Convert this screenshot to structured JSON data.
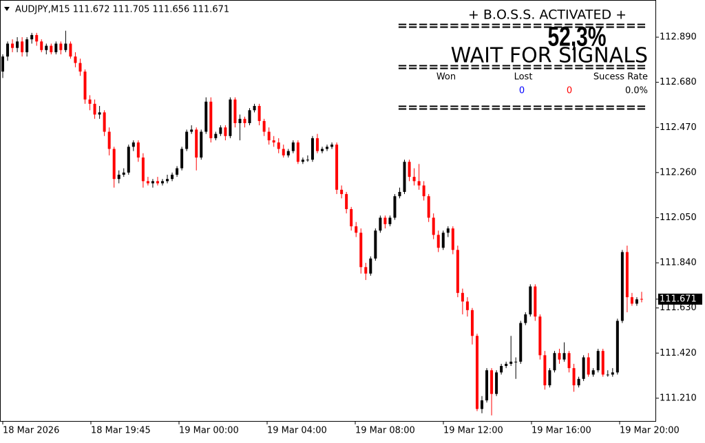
{
  "chart_data": {
    "type": "candlestick",
    "header": "AUDJPY,M15  111.672 111.705 111.656 111.671",
    "up_color": "#000000",
    "down_color": "#ff0000",
    "ylim": [
      111.104,
      113.063
    ],
    "yticks": [
      {
        "value": 112.89,
        "label": "112.890"
      },
      {
        "value": 112.68,
        "label": "112.680"
      },
      {
        "value": 112.47,
        "label": "112.470"
      },
      {
        "value": 112.26,
        "label": "112.260"
      },
      {
        "value": 112.05,
        "label": "112.050"
      },
      {
        "value": 111.84,
        "label": "111.840"
      },
      {
        "value": 111.63,
        "label": "111.630"
      },
      {
        "value": 111.42,
        "label": "111.420"
      },
      {
        "value": 111.21,
        "label": "111.210"
      }
    ],
    "last_price": {
      "value": 111.671,
      "label": "111.671"
    },
    "time_labels": [
      "18 Mar 2026",
      "18 Mar 19:45",
      "19 Mar 00:00",
      "19 Mar 04:00",
      "19 Mar 08:00",
      "19 Mar 12:00",
      "19 Mar 16:00",
      "19 Mar 20:00"
    ],
    "candles": [
      [
        112.73,
        112.81,
        112.7,
        112.8
      ],
      [
        112.8,
        112.87,
        112.78,
        112.86
      ],
      [
        112.86,
        112.88,
        112.82,
        112.84
      ],
      [
        112.84,
        112.89,
        112.82,
        112.87
      ],
      [
        112.87,
        112.89,
        112.8,
        112.82
      ],
      [
        112.82,
        112.89,
        112.8,
        112.88
      ],
      [
        112.88,
        112.91,
        112.86,
        112.9
      ],
      [
        112.9,
        112.91,
        112.85,
        112.87
      ],
      [
        112.87,
        112.88,
        112.82,
        112.83
      ],
      [
        112.83,
        112.86,
        112.81,
        112.85
      ],
      [
        112.85,
        112.86,
        112.81,
        112.82
      ],
      [
        112.82,
        112.87,
        112.81,
        112.86
      ],
      [
        112.86,
        112.87,
        112.81,
        112.83
      ],
      [
        112.83,
        112.92,
        112.82,
        112.86
      ],
      [
        112.86,
        112.87,
        112.79,
        112.8
      ],
      [
        112.8,
        112.82,
        112.75,
        112.77
      ],
      [
        112.77,
        112.79,
        112.71,
        112.73
      ],
      [
        112.73,
        112.74,
        112.58,
        112.6
      ],
      [
        112.6,
        112.62,
        112.55,
        112.58
      ],
      [
        112.58,
        112.6,
        112.51,
        112.53
      ],
      [
        112.53,
        112.57,
        112.51,
        112.54
      ],
      [
        112.54,
        112.55,
        112.43,
        112.45
      ],
      [
        112.45,
        112.47,
        112.34,
        112.37
      ],
      [
        112.37,
        112.38,
        112.19,
        112.23
      ],
      [
        112.23,
        112.27,
        112.21,
        112.25
      ],
      [
        112.25,
        112.28,
        112.24,
        112.26
      ],
      [
        112.26,
        112.39,
        112.25,
        112.38
      ],
      [
        112.38,
        112.41,
        112.36,
        112.4
      ],
      [
        112.4,
        112.41,
        112.31,
        112.33
      ],
      [
        112.33,
        112.35,
        112.19,
        112.22
      ],
      [
        112.22,
        112.24,
        112.2,
        112.21
      ],
      [
        112.21,
        112.23,
        112.19,
        112.22
      ],
      [
        112.22,
        112.24,
        112.2,
        112.21
      ],
      [
        112.21,
        112.23,
        112.2,
        112.22
      ],
      [
        112.22,
        112.25,
        112.21,
        112.23
      ],
      [
        112.23,
        112.26,
        112.22,
        112.25
      ],
      [
        112.25,
        112.29,
        112.24,
        112.28
      ],
      [
        112.28,
        112.38,
        112.27,
        112.37
      ],
      [
        112.37,
        112.46,
        112.36,
        112.45
      ],
      [
        112.45,
        112.48,
        112.44,
        112.46
      ],
      [
        112.46,
        112.47,
        112.27,
        112.33
      ],
      [
        112.33,
        112.46,
        112.32,
        112.45
      ],
      [
        112.45,
        112.61,
        112.44,
        112.59
      ],
      [
        112.59,
        112.61,
        112.4,
        112.42
      ],
      [
        112.42,
        112.45,
        112.41,
        112.44
      ],
      [
        112.44,
        112.48,
        112.43,
        112.47
      ],
      [
        112.47,
        112.48,
        112.41,
        112.43
      ],
      [
        112.43,
        112.61,
        112.42,
        112.6
      ],
      [
        112.6,
        112.61,
        112.47,
        112.49
      ],
      [
        112.49,
        112.53,
        112.41,
        112.51
      ],
      [
        112.51,
        112.52,
        112.47,
        112.49
      ],
      [
        112.49,
        112.56,
        112.48,
        112.55
      ],
      [
        112.55,
        112.58,
        112.54,
        112.57
      ],
      [
        112.57,
        112.58,
        112.48,
        112.5
      ],
      [
        112.5,
        112.51,
        112.43,
        112.45
      ],
      [
        112.45,
        112.47,
        112.39,
        112.41
      ],
      [
        112.41,
        112.43,
        112.38,
        112.4
      ],
      [
        112.4,
        112.42,
        112.35,
        112.37
      ],
      [
        112.37,
        112.39,
        112.33,
        112.34
      ],
      [
        112.34,
        112.37,
        112.33,
        112.36
      ],
      [
        112.36,
        112.41,
        112.35,
        112.4
      ],
      [
        112.4,
        112.41,
        112.3,
        112.31
      ],
      [
        112.31,
        112.33,
        112.3,
        112.32
      ],
      [
        112.32,
        112.34,
        112.31,
        112.32
      ],
      [
        112.32,
        112.43,
        112.31,
        112.42
      ],
      [
        112.42,
        112.44,
        112.35,
        112.36
      ],
      [
        112.36,
        112.38,
        112.35,
        112.37
      ],
      [
        112.37,
        112.39,
        112.36,
        112.38
      ],
      [
        112.38,
        112.4,
        112.37,
        112.39
      ],
      [
        112.39,
        112.4,
        112.16,
        112.18
      ],
      [
        112.18,
        112.2,
        112.14,
        112.16
      ],
      [
        112.16,
        112.17,
        112.07,
        112.09
      ],
      [
        112.09,
        112.1,
        111.99,
        112.01
      ],
      [
        112.01,
        112.03,
        111.96,
        111.98
      ],
      [
        111.98,
        112.0,
        111.79,
        111.82
      ],
      [
        111.82,
        111.84,
        111.76,
        111.79
      ],
      [
        111.79,
        111.87,
        111.78,
        111.86
      ],
      [
        111.86,
        112.0,
        111.85,
        111.99
      ],
      [
        111.99,
        112.06,
        111.98,
        112.05
      ],
      [
        112.05,
        112.06,
        112.0,
        112.02
      ],
      [
        112.02,
        112.06,
        112.01,
        112.05
      ],
      [
        112.05,
        112.16,
        112.04,
        112.15
      ],
      [
        112.15,
        112.19,
        112.14,
        112.17
      ],
      [
        112.17,
        112.32,
        112.16,
        112.31
      ],
      [
        112.31,
        112.32,
        112.22,
        112.24
      ],
      [
        112.24,
        112.28,
        112.2,
        112.22
      ],
      [
        112.22,
        112.3,
        112.18,
        112.2
      ],
      [
        112.2,
        112.22,
        112.13,
        112.15
      ],
      [
        112.15,
        112.16,
        112.03,
        112.05
      ],
      [
        112.05,
        112.07,
        111.95,
        111.97
      ],
      [
        111.97,
        111.99,
        111.89,
        111.91
      ],
      [
        111.91,
        111.99,
        111.9,
        111.98
      ],
      [
        111.98,
        112.01,
        111.96,
        112.0
      ],
      [
        112.0,
        112.01,
        111.88,
        111.9
      ],
      [
        111.9,
        111.92,
        111.68,
        111.7
      ],
      [
        111.7,
        111.72,
        111.6,
        111.66
      ],
      [
        111.66,
        111.68,
        111.59,
        111.62
      ],
      [
        111.62,
        111.63,
        111.46,
        111.5
      ],
      [
        111.5,
        111.51,
        111.15,
        111.16
      ],
      [
        111.16,
        111.22,
        111.14,
        111.2
      ],
      [
        111.2,
        111.35,
        111.19,
        111.34
      ],
      [
        111.34,
        111.35,
        111.13,
        111.23
      ],
      [
        111.23,
        111.34,
        111.22,
        111.33
      ],
      [
        111.33,
        111.37,
        111.32,
        111.36
      ],
      [
        111.36,
        111.38,
        111.35,
        111.37
      ],
      [
        111.37,
        111.5,
        111.36,
        111.38
      ],
      [
        111.38,
        111.4,
        111.3,
        111.38
      ],
      [
        111.38,
        111.57,
        111.37,
        111.56
      ],
      [
        111.56,
        111.61,
        111.55,
        111.6
      ],
      [
        111.6,
        111.74,
        111.59,
        111.73
      ],
      [
        111.73,
        111.74,
        111.57,
        111.59
      ],
      [
        111.59,
        111.6,
        111.39,
        111.41
      ],
      [
        111.41,
        111.43,
        111.25,
        111.27
      ],
      [
        111.27,
        111.35,
        111.26,
        111.34
      ],
      [
        111.34,
        111.43,
        111.33,
        111.42
      ],
      [
        111.42,
        111.44,
        111.37,
        111.39
      ],
      [
        111.39,
        111.47,
        111.38,
        111.42
      ],
      [
        111.42,
        111.43,
        111.33,
        111.35
      ],
      [
        111.35,
        111.37,
        111.24,
        111.27
      ],
      [
        111.27,
        111.31,
        111.26,
        111.3
      ],
      [
        111.3,
        111.41,
        111.29,
        111.4
      ],
      [
        111.4,
        111.42,
        111.31,
        111.32
      ],
      [
        111.32,
        111.35,
        111.31,
        111.34
      ],
      [
        111.34,
        111.44,
        111.33,
        111.43
      ],
      [
        111.43,
        111.44,
        111.31,
        111.32
      ],
      [
        111.32,
        111.34,
        111.31,
        111.32
      ],
      [
        111.32,
        111.35,
        111.31,
        111.33
      ],
      [
        111.33,
        111.58,
        111.32,
        111.57
      ],
      [
        111.57,
        111.9,
        111.56,
        111.89
      ],
      [
        111.89,
        111.92,
        111.61,
        111.68
      ],
      [
        111.68,
        111.7,
        111.64,
        111.65
      ],
      [
        111.65,
        111.68,
        111.64,
        111.67
      ],
      [
        111.672,
        111.705,
        111.656,
        111.671
      ]
    ],
    "overlay": {
      "status": "+ B.O.S.S. ACTIVATED +",
      "divider": "========================",
      "percent": "52,3%",
      "signal": "WAIT FOR SIGNALS",
      "won_label": "Won",
      "lost_label": "Lost",
      "rate_label": "Sucess Rate",
      "won": "0",
      "lost": "0",
      "rate": "0.0%"
    }
  }
}
